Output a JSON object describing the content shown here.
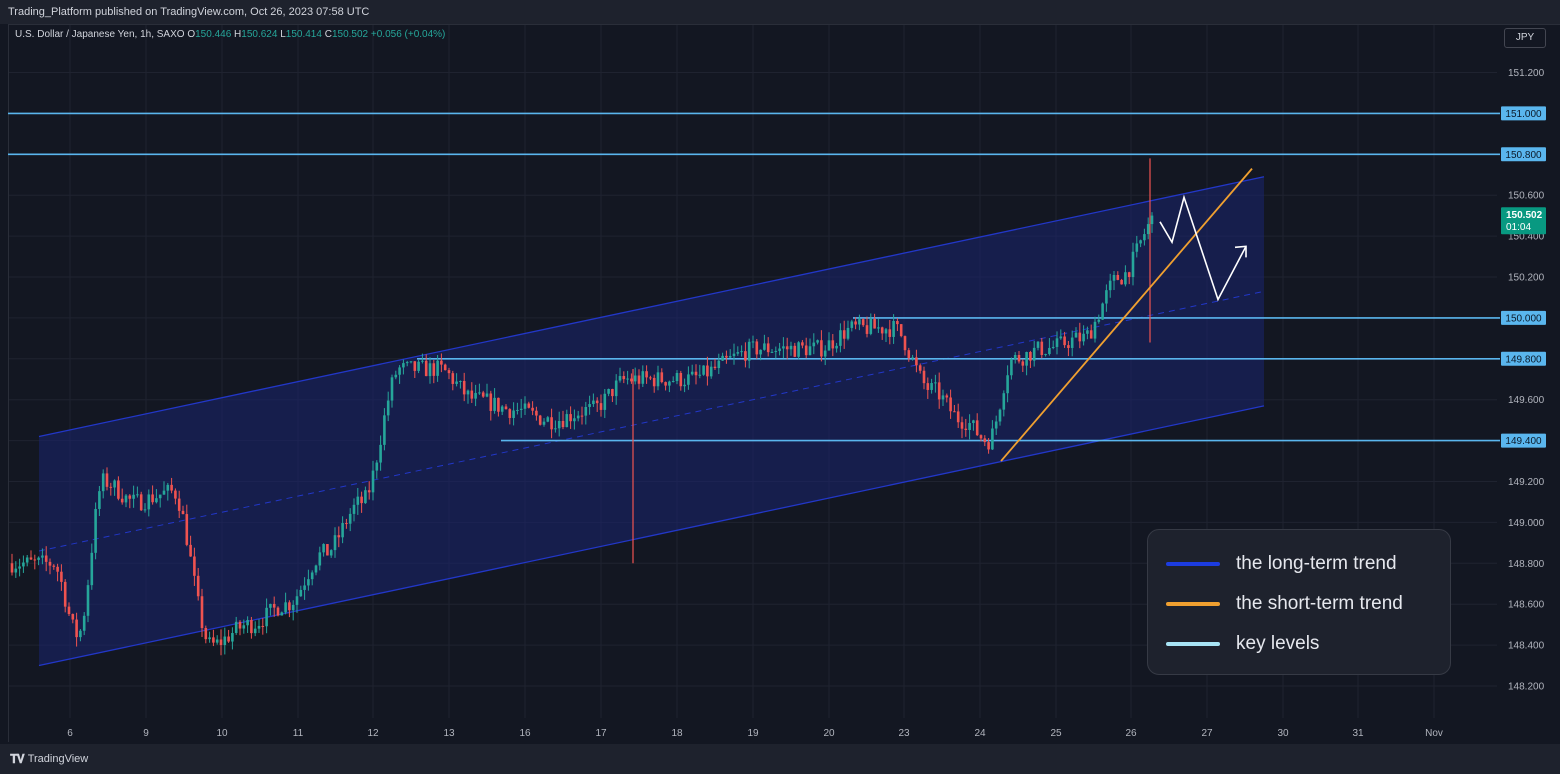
{
  "header": {
    "publisher_line": "Trading_Platform published on TradingView.com, Oct 26, 2023 07:58 UTC"
  },
  "legend": {
    "symbol": "U.S. Dollar / Japanese Yen, 1h, SAXO",
    "open_label": "O",
    "open": "150.446",
    "high_label": "H",
    "high": "150.624",
    "low_label": "L",
    "low": "150.414",
    "close_label": "C",
    "close": "150.502",
    "change": "+0.056 (+0.04%)"
  },
  "currency_button": "JPY",
  "footer": {
    "brand": "TradingView"
  },
  "info_box": {
    "items": [
      {
        "label": "the long-term trend",
        "color": "#1c3ce0"
      },
      {
        "label": "the short-term trend",
        "color": "#f0a030"
      },
      {
        "label": "key levels",
        "color": "#a8e4f5"
      }
    ]
  },
  "colors": {
    "background": "#131722",
    "up_candle": "#26a69a",
    "down_candle": "#ef5350",
    "channel_line": "#2237c8",
    "channel_fill": "#1a2470",
    "key_level": "#5ab6ee",
    "short_trend": "#f0a030",
    "arrow": "#ffffff",
    "price_badge": "#089981"
  },
  "chart_data": {
    "type": "candlestick",
    "symbol": "USDJPY",
    "timeframe": "1h",
    "ylim": [
      148.1,
      151.3
    ],
    "y_ticks": [
      "151.200",
      "151.000",
      "150.800",
      "150.600",
      "150.400",
      "150.200",
      "150.000",
      "149.800",
      "149.600",
      "149.400",
      "149.200",
      "149.000",
      "148.800",
      "148.600",
      "148.400",
      "148.200"
    ],
    "x_ticks": [
      "6",
      "9",
      "10",
      "11",
      "12",
      "13",
      "16",
      "17",
      "18",
      "19",
      "20",
      "23",
      "24",
      "25",
      "26",
      "27",
      "30",
      "31",
      "Nov"
    ],
    "highlighted_levels": [
      "151.000",
      "150.800",
      "150.000",
      "149.800",
      "149.400"
    ],
    "current_price": {
      "value": "150.502",
      "countdown": "01:04"
    },
    "key_levels": [
      {
        "value": 151.0,
        "from_x": "6",
        "to_x": "right-edge"
      },
      {
        "value": 150.8,
        "from_x": "6",
        "to_x": "right-edge"
      },
      {
        "value": 150.0,
        "from_x": "20",
        "to_x": "right-edge"
      },
      {
        "value": 149.8,
        "from_x": "12",
        "to_x": "right-edge"
      },
      {
        "value": 149.4,
        "from_x": "16",
        "to_x": "right-edge"
      }
    ],
    "long_term_channel": {
      "start": {
        "x": "6",
        "upper": 149.42,
        "lower": 148.3
      },
      "end": {
        "x": "30",
        "upper": 150.69,
        "lower": 149.57
      }
    },
    "short_term_trend": {
      "start": {
        "x": "24",
        "value": 149.3
      },
      "end": {
        "x": "27",
        "value": 150.73
      }
    },
    "projection_path": [
      {
        "x": "26",
        "value": 150.47
      },
      {
        "x": "26",
        "value": 150.37
      },
      {
        "x": "27",
        "value": 150.59
      },
      {
        "x": "27",
        "value": 150.09
      },
      {
        "x": "27",
        "value": 150.35
      }
    ],
    "anchors": [
      {
        "x": "6",
        "value": 148.8
      },
      {
        "x": "6",
        "value": 148.45
      },
      {
        "x": "6",
        "value": 149.2
      },
      {
        "x": "9",
        "value": 149.1
      },
      {
        "x": "9",
        "value": 149.15
      },
      {
        "x": "10",
        "value": 148.4
      },
      {
        "x": "10",
        "value": 148.5
      },
      {
        "x": "11",
        "value": 148.6
      },
      {
        "x": "11",
        "value": 148.85
      },
      {
        "x": "12",
        "value": 149.1
      },
      {
        "x": "12",
        "value": 149.75
      },
      {
        "x": "13",
        "value": 149.75
      },
      {
        "x": "13",
        "value": 149.6
      },
      {
        "x": "16",
        "value": 149.55
      },
      {
        "x": "16",
        "value": 149.5
      },
      {
        "x": "17",
        "value": 149.55
      },
      {
        "x": "17",
        "value": 149.7
      },
      {
        "x": "18",
        "value": 149.7
      },
      {
        "x": "19",
        "value": 149.85
      },
      {
        "x": "20",
        "value": 149.85
      },
      {
        "x": "20",
        "value": 149.95
      },
      {
        "x": "23",
        "value": 149.95
      },
      {
        "x": "23",
        "value": 149.65
      },
      {
        "x": "24",
        "value": 149.5
      },
      {
        "x": "24",
        "value": 149.4
      },
      {
        "x": "24",
        "value": 149.8
      },
      {
        "x": "25",
        "value": 149.85
      },
      {
        "x": "25",
        "value": 149.9
      },
      {
        "x": "26",
        "value": 150.2
      },
      {
        "x": "26",
        "value": 150.5
      }
    ],
    "wick_spikes": [
      {
        "x": "17",
        "low": 148.8
      },
      {
        "x": "26",
        "high": 150.78,
        "low": 149.88
      }
    ]
  }
}
